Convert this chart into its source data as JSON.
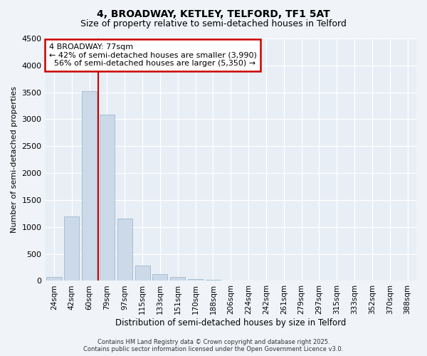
{
  "title": "4, BROADWAY, KETLEY, TELFORD, TF1 5AT",
  "subtitle": "Size of property relative to semi-detached houses in Telford",
  "xlabel": "Distribution of semi-detached houses by size in Telford",
  "ylabel": "Number of semi-detached properties",
  "categories": [
    "24sqm",
    "42sqm",
    "60sqm",
    "79sqm",
    "97sqm",
    "115sqm",
    "133sqm",
    "151sqm",
    "170sqm",
    "188sqm",
    "206sqm",
    "224sqm",
    "242sqm",
    "261sqm",
    "279sqm",
    "297sqm",
    "315sqm",
    "333sqm",
    "352sqm",
    "370sqm",
    "388sqm"
  ],
  "values": [
    70,
    1200,
    3520,
    3080,
    1160,
    290,
    130,
    75,
    35,
    15,
    5,
    2,
    1,
    0,
    0,
    0,
    0,
    0,
    0,
    0,
    0
  ],
  "bar_color": "#ccd9e8",
  "bar_edge_color": "#a8bfd4",
  "vline_color": "#cc0000",
  "vline_index": 2,
  "property_size": "77sqm",
  "property_name": "4 BROADWAY",
  "pct_smaller": 42,
  "pct_larger": 56,
  "count_smaller": 3990,
  "count_larger": 5350,
  "annotation_box_color": "#cc0000",
  "ylim": [
    0,
    4500
  ],
  "yticks": [
    0,
    500,
    1000,
    1500,
    2000,
    2500,
    3000,
    3500,
    4000,
    4500
  ],
  "bg_color": "#e8eef5",
  "grid_color": "#ffffff",
  "fig_color": "#f0f4f8",
  "footer_line1": "Contains HM Land Registry data © Crown copyright and database right 2025.",
  "footer_line2": "Contains public sector information licensed under the Open Government Licence v3.0."
}
